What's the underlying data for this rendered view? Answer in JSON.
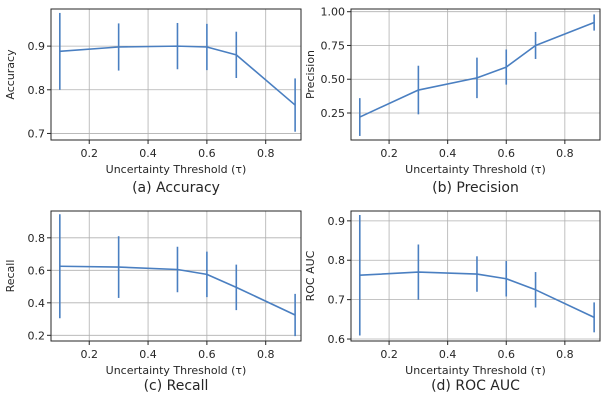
{
  "chart_data": [
    {
      "type": "line",
      "caption": "(a) Accuracy",
      "xlabel": "Uncertainty Threshold (τ)",
      "ylabel": "Accuracy",
      "xlim": [
        0.07,
        0.92
      ],
      "ylim": [
        0.685,
        0.985
      ],
      "xticks": [
        0.2,
        0.4,
        0.6,
        0.8
      ],
      "xtick_labels": [
        "0.2",
        "0.4",
        "0.6",
        "0.8"
      ],
      "yticks": [
        0.7,
        0.8,
        0.9
      ],
      "ytick_labels": [
        "0.7",
        "0.8",
        "0.9"
      ],
      "grid": true,
      "color": "#4a7fc1",
      "series": [
        {
          "x": [
            0.1,
            0.3,
            0.5,
            0.6,
            0.7,
            0.9
          ],
          "y": [
            0.888,
            0.898,
            0.9,
            0.898,
            0.88,
            0.765
          ],
          "err": [
            0.088,
            0.054,
            0.053,
            0.053,
            0.053,
            0.061
          ]
        }
      ]
    },
    {
      "type": "line",
      "caption": "(b) Precision",
      "xlabel": "Uncertainty Threshold (τ)",
      "ylabel": "Precision",
      "xlim": [
        0.07,
        0.92
      ],
      "ylim": [
        0.05,
        1.02
      ],
      "xticks": [
        0.2,
        0.4,
        0.6,
        0.8
      ],
      "xtick_labels": [
        "0.2",
        "0.4",
        "0.6",
        "0.8"
      ],
      "yticks": [
        0.25,
        0.5,
        0.75,
        1.0
      ],
      "ytick_labels": [
        "0.25",
        "0.50",
        "0.75",
        "1.00"
      ],
      "grid": true,
      "color": "#4a7fc1",
      "series": [
        {
          "x": [
            0.1,
            0.3,
            0.5,
            0.6,
            0.7,
            0.9
          ],
          "y": [
            0.22,
            0.42,
            0.51,
            0.59,
            0.75,
            0.92
          ],
          "err": [
            0.14,
            0.18,
            0.15,
            0.13,
            0.1,
            0.06
          ]
        }
      ]
    },
    {
      "type": "line",
      "caption": "(c) Recall",
      "xlabel": "Uncertainty Threshold (τ)",
      "ylabel": "Recall",
      "xlim": [
        0.07,
        0.92
      ],
      "ylim": [
        0.165,
        0.965
      ],
      "xticks": [
        0.2,
        0.4,
        0.6,
        0.8
      ],
      "xtick_labels": [
        "0.2",
        "0.4",
        "0.6",
        "0.8"
      ],
      "yticks": [
        0.2,
        0.4,
        0.6,
        0.8
      ],
      "ytick_labels": [
        "0.2",
        "0.4",
        "0.6",
        "0.8"
      ],
      "grid": true,
      "color": "#4a7fc1",
      "series": [
        {
          "x": [
            0.1,
            0.3,
            0.5,
            0.6,
            0.7,
            0.9
          ],
          "y": [
            0.625,
            0.62,
            0.605,
            0.575,
            0.495,
            0.325
          ],
          "err": [
            0.32,
            0.19,
            0.14,
            0.14,
            0.14,
            0.13
          ]
        }
      ]
    },
    {
      "type": "line",
      "caption": "(d) ROC AUC",
      "xlabel": "Uncertainty Threshold (τ)",
      "ylabel": "ROC AUC",
      "xlim": [
        0.07,
        0.92
      ],
      "ylim": [
        0.595,
        0.925
      ],
      "xticks": [
        0.2,
        0.4,
        0.6,
        0.8
      ],
      "xtick_labels": [
        "0.2",
        "0.4",
        "0.6",
        "0.8"
      ],
      "yticks": [
        0.6,
        0.7,
        0.8,
        0.9
      ],
      "ytick_labels": [
        "0.6",
        "0.7",
        "0.8",
        "0.9"
      ],
      "grid": true,
      "color": "#4a7fc1",
      "series": [
        {
          "x": [
            0.1,
            0.3,
            0.5,
            0.6,
            0.7,
            0.9
          ],
          "y": [
            0.762,
            0.77,
            0.765,
            0.753,
            0.725,
            0.655
          ],
          "err": [
            0.153,
            0.07,
            0.045,
            0.045,
            0.045,
            0.038
          ]
        }
      ]
    }
  ]
}
